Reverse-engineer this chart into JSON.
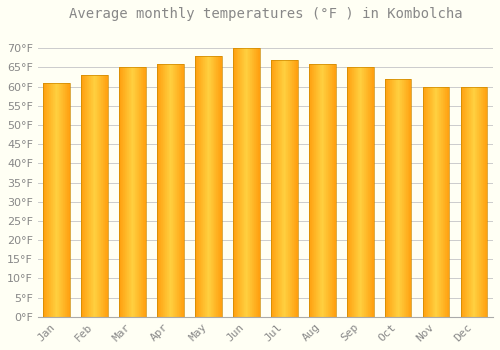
{
  "title": "Average monthly temperatures (°F ) in Kombolcha",
  "months": [
    "Jan",
    "Feb",
    "Mar",
    "Apr",
    "May",
    "Jun",
    "Jul",
    "Aug",
    "Sep",
    "Oct",
    "Nov",
    "Dec"
  ],
  "values": [
    61,
    63,
    65,
    66,
    68,
    70,
    67,
    66,
    65,
    62,
    60,
    60
  ],
  "bar_color_center": "#FFD040",
  "bar_color_edge": "#FFA010",
  "bar_edge_color": "#CC8800",
  "background_color": "#FFFFF4",
  "grid_color": "#CCCCCC",
  "text_color": "#888888",
  "ylim": [
    0,
    75
  ],
  "yticks": [
    0,
    5,
    10,
    15,
    20,
    25,
    30,
    35,
    40,
    45,
    50,
    55,
    60,
    65,
    70
  ],
  "bar_width": 0.7,
  "title_fontsize": 10,
  "tick_fontsize": 8,
  "n_strips": 40
}
